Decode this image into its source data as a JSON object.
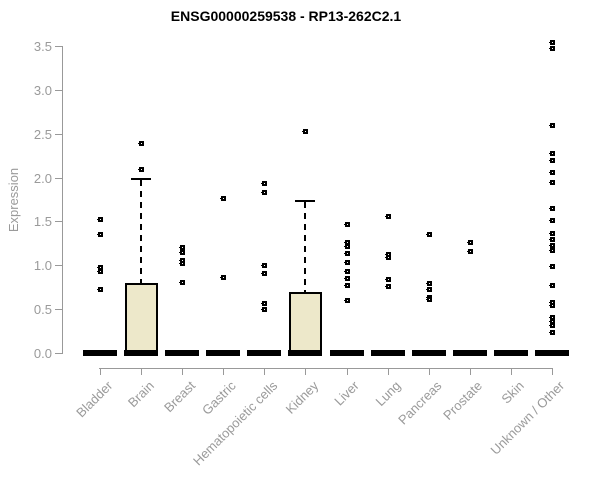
{
  "title": "ENSG00000259538 - RP13-262C2.1",
  "chart_data": {
    "type": "boxplot",
    "title": "ENSG00000259538 - RP13-262C2.1",
    "xlabel": "",
    "ylabel": "Expression",
    "ylim": [
      0,
      3.5
    ],
    "y_ticks": [
      "0.0",
      "0.5",
      "1.0",
      "1.5",
      "2.0",
      "2.5",
      "3.0",
      "3.5"
    ],
    "grid": false,
    "legend": "none",
    "categories": [
      "Bladder",
      "Brain",
      "Breast",
      "Gastric",
      "Hematopoietic cells",
      "Kidney",
      "Liver",
      "Lung",
      "Pancreas",
      "Prostate",
      "Skin",
      "Unknown / Other"
    ],
    "series": [
      {
        "name": "Bladder",
        "median": 0,
        "q1": 0,
        "q3": 0,
        "whisker_low": 0,
        "whisker_high": 0,
        "outliers": [
          1.53,
          1.36,
          0.98,
          0.93,
          0.73
        ]
      },
      {
        "name": "Brain",
        "median": 0,
        "q1": 0,
        "q3": 0.8,
        "whisker_low": 0,
        "whisker_high": 2.0,
        "outliers": [
          2.39,
          2.1
        ]
      },
      {
        "name": "Breast",
        "median": 0,
        "q1": 0,
        "q3": 0,
        "whisker_low": 0,
        "whisker_high": 0,
        "outliers": [
          1.21,
          1.15,
          1.06,
          1.03,
          0.81
        ]
      },
      {
        "name": "Gastric",
        "median": 0,
        "q1": 0,
        "q3": 0,
        "whisker_low": 0,
        "whisker_high": 0,
        "outliers": [
          1.77,
          0.87
        ]
      },
      {
        "name": "Hematopoietic cells",
        "median": 0,
        "q1": 0,
        "q3": 0,
        "whisker_low": 0,
        "whisker_high": 0,
        "outliers": [
          1.94,
          1.84,
          1.0,
          0.91,
          0.57,
          0.5
        ]
      },
      {
        "name": "Kidney",
        "median": 0,
        "q1": 0,
        "q3": 0.7,
        "whisker_low": 0,
        "whisker_high": 1.74,
        "outliers": [
          2.53
        ]
      },
      {
        "name": "Liver",
        "median": 0,
        "q1": 0,
        "q3": 0,
        "whisker_low": 0,
        "whisker_high": 0,
        "outliers": [
          1.47,
          1.26,
          1.22,
          1.14,
          1.04,
          0.94,
          0.86,
          0.78,
          0.6
        ]
      },
      {
        "name": "Lung",
        "median": 0,
        "q1": 0,
        "q3": 0,
        "whisker_low": 0,
        "whisker_high": 0,
        "outliers": [
          1.56,
          1.13,
          1.1,
          0.84,
          0.76
        ]
      },
      {
        "name": "Pancreas",
        "median": 0,
        "q1": 0,
        "q3": 0,
        "whisker_low": 0,
        "whisker_high": 0,
        "outliers": [
          1.36,
          0.8,
          0.73,
          0.64,
          0.61
        ]
      },
      {
        "name": "Prostate",
        "median": 0,
        "q1": 0,
        "q3": 0,
        "whisker_low": 0,
        "whisker_high": 0,
        "outliers": [
          1.27,
          1.16
        ]
      },
      {
        "name": "Skin",
        "median": 0,
        "q1": 0,
        "q3": 0,
        "whisker_low": 0,
        "whisker_high": 0,
        "outliers": []
      },
      {
        "name": "Unknown / Other",
        "median": 0,
        "q1": 0,
        "q3": 0,
        "whisker_low": 0,
        "whisker_high": 0,
        "outliers": [
          3.55,
          3.48,
          2.6,
          2.28,
          2.2,
          2.06,
          1.95,
          1.65,
          1.52,
          1.37,
          1.3,
          1.23,
          1.17,
          0.99,
          0.78,
          0.58,
          0.55,
          0.41,
          0.36,
          0.32,
          0.24
        ]
      }
    ],
    "colors": {
      "box_fill": "#ede8ca",
      "box_border": "#000000",
      "median": "#000000",
      "whisker": "#000000",
      "outlier": "#000000",
      "axis": "#999999",
      "tick_label": "#9a9a9a",
      "title": "#000000",
      "background": "#ffffff"
    }
  }
}
